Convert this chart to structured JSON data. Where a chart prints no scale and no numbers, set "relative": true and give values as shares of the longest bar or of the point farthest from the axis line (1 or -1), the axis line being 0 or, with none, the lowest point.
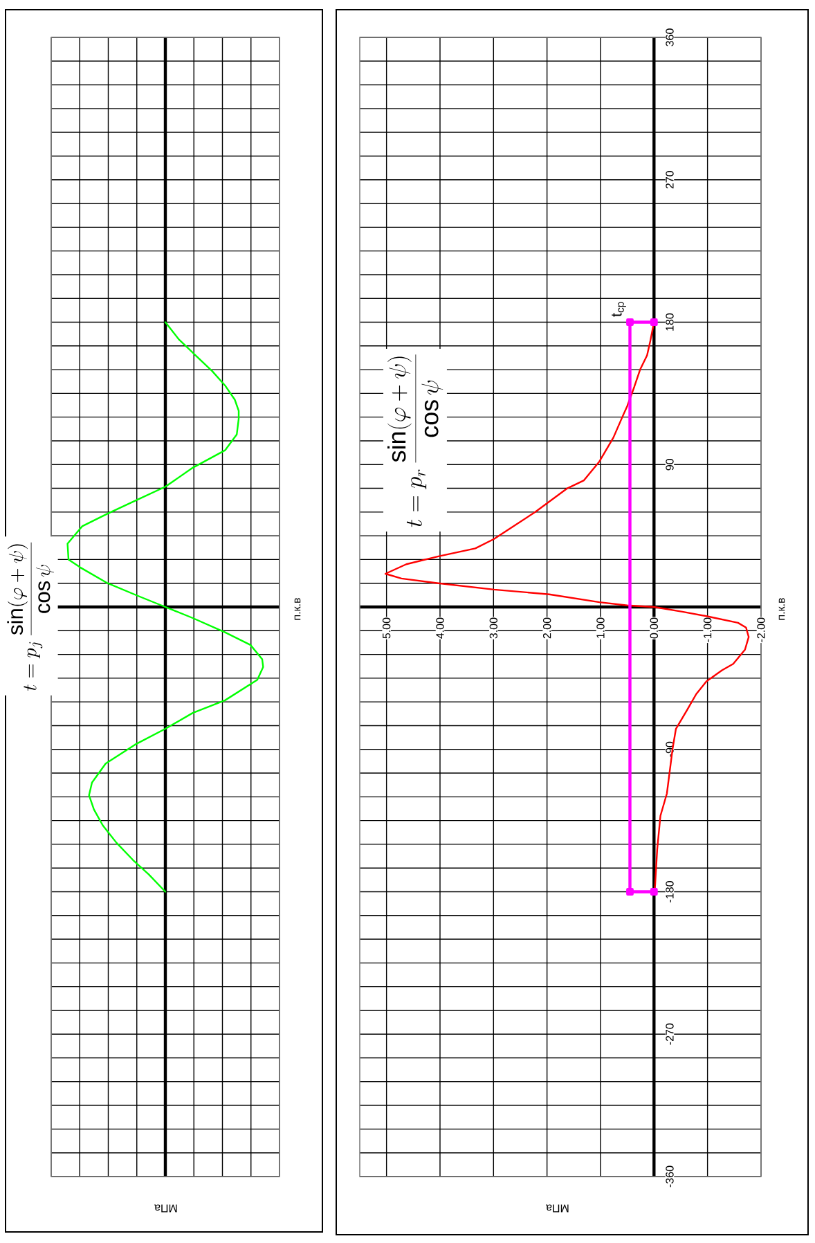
{
  "chart_data": [
    {
      "type": "line",
      "orientation": "horizontal",
      "title": "t = p_{j}\\,\\frac{\\sin(\\varphi + \\psi)}{\\cos\\psi}",
      "xlabel": "МПа",
      "ylabel": "п.к.в",
      "relative": true,
      "tick_labels": false,
      "grid": true,
      "ylim": [
        -360,
        360
      ],
      "yticks": [
        -360,
        {
          "value": -345,
          "label": null
        },
        {
          "value": -330,
          "label": null
        },
        {
          "value": -315,
          "label": null
        },
        {
          "value": -300,
          "label": null
        },
        {
          "value": -285,
          "label": null
        },
        -270,
        {
          "value": -255,
          "label": null
        },
        {
          "value": -240,
          "label": null
        },
        {
          "value": -225,
          "label": null
        },
        {
          "value": -210,
          "label": null
        },
        {
          "value": -195,
          "label": null
        },
        -180,
        {
          "value": -165,
          "label": null
        },
        {
          "value": -150,
          "label": null
        },
        {
          "value": -135,
          "label": null
        },
        {
          "value": -120,
          "label": null
        },
        {
          "value": -105,
          "label": null
        },
        -90,
        {
          "value": -75,
          "label": null
        },
        {
          "value": -60,
          "label": null
        },
        {
          "value": -45,
          "label": null
        },
        {
          "value": -30,
          "label": null
        },
        {
          "value": -15,
          "label": null
        },
        {
          "value": 0,
          "label": null
        },
        {
          "value": 15,
          "label": null
        },
        {
          "value": 30,
          "label": null
        },
        {
          "value": 45,
          "label": null
        },
        {
          "value": 60,
          "label": null
        },
        {
          "value": 75,
          "label": null
        },
        90,
        {
          "value": 105,
          "label": null
        },
        {
          "value": 120,
          "label": null
        },
        {
          "value": 135,
          "label": null
        },
        {
          "value": 150,
          "label": null
        },
        {
          "value": 165,
          "label": null
        },
        180,
        {
          "value": 195,
          "label": null
        },
        {
          "value": 210,
          "label": null
        },
        {
          "value": 225,
          "label": null
        },
        {
          "value": 240,
          "label": null
        },
        {
          "value": 255,
          "label": null
        },
        270,
        {
          "value": 285,
          "label": null
        },
        {
          "value": 300,
          "label": null
        },
        {
          "value": 315,
          "label": null
        },
        {
          "value": 330,
          "label": null
        },
        {
          "value": 345,
          "label": null
        },
        360
      ],
      "x": [
        -180,
        -169,
        -160,
        -149,
        -138,
        -128,
        -119,
        -111,
        -99,
        -87,
        -77,
        -67,
        -59,
        -46,
        -38,
        -33,
        -24,
        -16,
        -7,
        0,
        7,
        15,
        25,
        30,
        40,
        51,
        59,
        68,
        76,
        88,
        99,
        109,
        119,
        124,
        131,
        140,
        149,
        159,
        169,
        180
      ],
      "series": [
        {
          "color": "#00ff00",
          "values": [
            0,
            -0.17,
            -0.33,
            -0.5,
            -0.64,
            -0.73,
            -0.78,
            -0.75,
            -0.61,
            -0.31,
            0,
            0.28,
            0.61,
            0.94,
            1,
            0.99,
            0.87,
            0.61,
            0.28,
            0,
            -0.28,
            -0.59,
            -0.87,
            -0.99,
            -1,
            -0.85,
            -0.59,
            -0.28,
            0,
            0.28,
            0.61,
            0.73,
            0.75,
            0.75,
            0.71,
            0.61,
            0.48,
            0.31,
            0.14,
            0
          ]
        }
      ]
    },
    {
      "type": "line",
      "orientation": "horizontal",
      "title": "t = p_{r}\\,\\frac{\\sin(\\varphi + \\psi)}{\\cos\\psi}",
      "xlabel": "МПа",
      "ylabel": "п.к.в",
      "grid": true,
      "xlim": [
        5.5,
        -2
      ],
      "xticks": [
        {
          "value": 5,
          "label": "5.00"
        },
        {
          "value": 4,
          "label": "4.00"
        },
        {
          "value": 3,
          "label": "3.00"
        },
        {
          "value": 2,
          "label": "2.00"
        },
        {
          "value": 1,
          "label": "1.00"
        },
        {
          "value": 0,
          "label": "0.00"
        },
        {
          "value": -1,
          "label": "-1.00"
        },
        {
          "value": -2,
          "label": "-2.00"
        }
      ],
      "ylim": [
        -360,
        360
      ],
      "yticks": [
        -360,
        {
          "value": -345,
          "label": null
        },
        {
          "value": -330,
          "label": null
        },
        {
          "value": -315,
          "label": null
        },
        {
          "value": -300,
          "label": null
        },
        {
          "value": -285,
          "label": null
        },
        -270,
        {
          "value": -255,
          "label": null
        },
        {
          "value": -240,
          "label": null
        },
        {
          "value": -225,
          "label": null
        },
        {
          "value": -210,
          "label": null
        },
        {
          "value": -195,
          "label": null
        },
        -180,
        {
          "value": -165,
          "label": null
        },
        {
          "value": -150,
          "label": null
        },
        {
          "value": -135,
          "label": null
        },
        {
          "value": -120,
          "label": null
        },
        {
          "value": -105,
          "label": null
        },
        -90,
        {
          "value": -75,
          "label": null
        },
        {
          "value": -60,
          "label": null
        },
        {
          "value": -45,
          "label": null
        },
        {
          "value": -30,
          "label": null
        },
        {
          "value": -15,
          "label": null
        },
        {
          "value": 0,
          "label": null
        },
        {
          "value": 15,
          "label": null
        },
        {
          "value": 30,
          "label": null
        },
        {
          "value": 45,
          "label": null
        },
        {
          "value": 60,
          "label": null
        },
        {
          "value": 75,
          "label": null
        },
        90,
        {
          "value": 105,
          "label": null
        },
        {
          "value": 120,
          "label": null
        },
        {
          "value": 135,
          "label": null
        },
        {
          "value": 150,
          "label": null
        },
        {
          "value": 165,
          "label": null
        },
        180,
        {
          "value": 195,
          "label": null
        },
        {
          "value": 210,
          "label": null
        },
        {
          "value": 225,
          "label": null
        },
        {
          "value": 240,
          "label": null
        },
        {
          "value": 255,
          "label": null
        },
        270,
        {
          "value": 285,
          "label": null
        },
        {
          "value": 300,
          "label": null
        },
        {
          "value": 315,
          "label": null
        },
        {
          "value": 330,
          "label": null
        },
        {
          "value": 345,
          "label": null
        },
        360
      ],
      "series": [
        {
          "color": "#ff0000",
          "x": [
            -180,
            -176,
            -153,
            -132,
            -118,
            -89,
            -77,
            -65,
            -55,
            -47,
            -40,
            -36,
            -27,
            -19,
            -13,
            -10,
            -6,
            -3,
            0,
            1,
            3,
            8,
            11,
            13,
            15,
            18,
            21,
            27,
            32,
            37,
            43,
            60,
            75,
            80,
            92,
            107,
            121,
            127,
            139,
            150,
            159,
            168,
            180
          ],
          "values": [
            0,
            -0.02,
            -0.06,
            -0.12,
            -0.24,
            -0.35,
            -0.41,
            -0.62,
            -0.79,
            -0.98,
            -1.27,
            -1.48,
            -1.7,
            -1.77,
            -1.72,
            -1.57,
            -1.01,
            -0.53,
            0,
            0.5,
            1.02,
            1.96,
            2.99,
            3.51,
            4.03,
            4.72,
            5.02,
            4.63,
            4.03,
            3.34,
            2.99,
            2.22,
            1.62,
            1.31,
            1.02,
            0.76,
            0.58,
            0.5,
            0.37,
            0.26,
            0.13,
            0.07,
            0
          ]
        },
        {
          "name": "t$_{ср}$",
          "color": "#ff00ff",
          "marker": "square",
          "x": [
            -180,
            -180,
            180,
            180
          ],
          "values": [
            0,
            0.45,
            0.45,
            0
          ]
        }
      ]
    }
  ]
}
